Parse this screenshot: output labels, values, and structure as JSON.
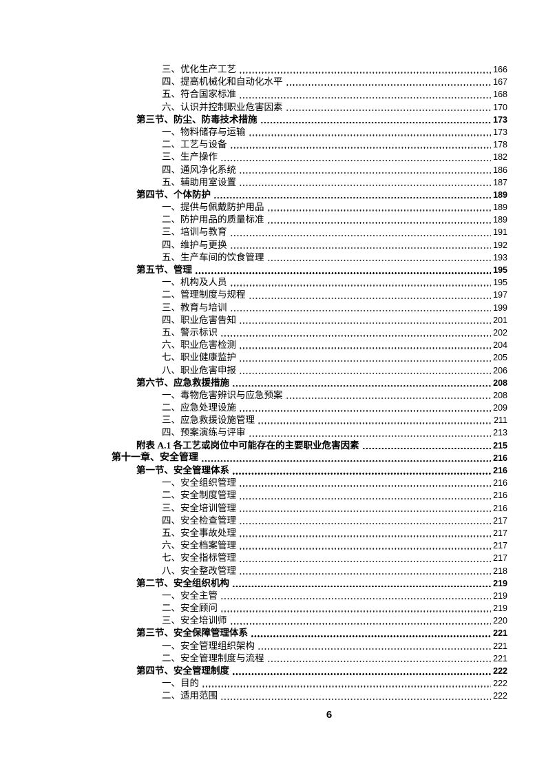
{
  "page": {
    "number": "6"
  },
  "toc": {
    "entries": [
      {
        "level": "item",
        "label": "三、优化生产工艺",
        "page": "166"
      },
      {
        "level": "item",
        "label": "四、提高机械化和自动化水平",
        "page": "167"
      },
      {
        "level": "item",
        "label": "五、符合国家标准",
        "page": "168"
      },
      {
        "level": "item",
        "label": "六、认识并控制职业危害因素",
        "page": "170"
      },
      {
        "level": "section",
        "label": "第三节、防尘、防毒技术措施",
        "page": "173"
      },
      {
        "level": "item",
        "label": "一、物料储存与运输",
        "page": "173"
      },
      {
        "level": "item",
        "label": "二、工艺与设备",
        "page": "178"
      },
      {
        "level": "item",
        "label": "三、生产操作",
        "page": "182"
      },
      {
        "level": "item",
        "label": "四、通风净化系统",
        "page": "186"
      },
      {
        "level": "item",
        "label": "五、辅助用室设置",
        "page": "187"
      },
      {
        "level": "section",
        "label": "第四节、个体防护",
        "page": "189"
      },
      {
        "level": "item",
        "label": "一、提供与佩戴防护用品",
        "page": "189"
      },
      {
        "level": "item",
        "label": "二、防护用品的质量标准",
        "page": "189"
      },
      {
        "level": "item",
        "label": "三、培训与教育",
        "page": "191"
      },
      {
        "level": "item",
        "label": "四、维护与更换",
        "page": "192"
      },
      {
        "level": "item",
        "label": "五、生产车间的饮食管理",
        "page": "193"
      },
      {
        "level": "section",
        "label": "第五节、管理",
        "page": "195"
      },
      {
        "level": "item",
        "label": "一、机构及人员",
        "page": "195"
      },
      {
        "level": "item",
        "label": "二、管理制度与规程",
        "page": "197"
      },
      {
        "level": "item",
        "label": "三、教育与培训",
        "page": "199"
      },
      {
        "level": "item",
        "label": "四、职业危害告知",
        "page": "201"
      },
      {
        "level": "item",
        "label": "五、警示标识",
        "page": "202"
      },
      {
        "level": "item",
        "label": "六、职业危害检测",
        "page": "204"
      },
      {
        "level": "item",
        "label": "七、职业健康监护",
        "page": "205"
      },
      {
        "level": "item",
        "label": "八、职业危害申报",
        "page": "206"
      },
      {
        "level": "section",
        "label": "第六节、应急救援措施",
        "page": "208"
      },
      {
        "level": "item",
        "label": "一、毒物危害辨识与应急预案",
        "page": "208"
      },
      {
        "level": "item",
        "label": "二、应急处理设施",
        "page": "209"
      },
      {
        "level": "item",
        "label": "三、应急救援设施管理",
        "page": "211"
      },
      {
        "level": "item",
        "label": "四、预案演练与评审",
        "page": "213"
      },
      {
        "level": "section",
        "label": "附表 A.1 各工艺或岗位中可能存在的主要职业危害因素",
        "page": "215"
      },
      {
        "level": "chapter",
        "label": "第十一章、安全管理",
        "page": "216"
      },
      {
        "level": "section",
        "label": "第一节、安全管理体系",
        "page": "216"
      },
      {
        "level": "item",
        "label": "一、安全组织管理",
        "page": "216"
      },
      {
        "level": "item",
        "label": "二、安全制度管理",
        "page": "216"
      },
      {
        "level": "item",
        "label": "三、安全培训管理",
        "page": "216"
      },
      {
        "level": "item",
        "label": "四、安全检查管理",
        "page": "217"
      },
      {
        "level": "item",
        "label": "五、安全事故处理",
        "page": "217"
      },
      {
        "level": "item",
        "label": "六、安全档案管理",
        "page": "217"
      },
      {
        "level": "item",
        "label": "七、安全指标管理",
        "page": "217"
      },
      {
        "level": "item",
        "label": "八、安全整改管理",
        "page": "218"
      },
      {
        "level": "section",
        "label": "第二节、安全组织机构",
        "page": "219"
      },
      {
        "level": "item",
        "label": "一、安全主管",
        "page": "219"
      },
      {
        "level": "item",
        "label": "二、安全顾问",
        "page": "219"
      },
      {
        "level": "item",
        "label": "三、安全培训师",
        "page": "220"
      },
      {
        "level": "section",
        "label": "第三节、安全保障管理体系",
        "page": "221"
      },
      {
        "level": "item",
        "label": "一、安全管理组织架构",
        "page": "221"
      },
      {
        "level": "item",
        "label": "二、安全管理制度与流程",
        "page": "221"
      },
      {
        "level": "section",
        "label": "第四节、安全管理制度",
        "page": "222"
      },
      {
        "level": "item",
        "label": "一、目的",
        "page": "222"
      },
      {
        "level": "item",
        "label": "二、适用范围",
        "page": "222"
      }
    ]
  }
}
